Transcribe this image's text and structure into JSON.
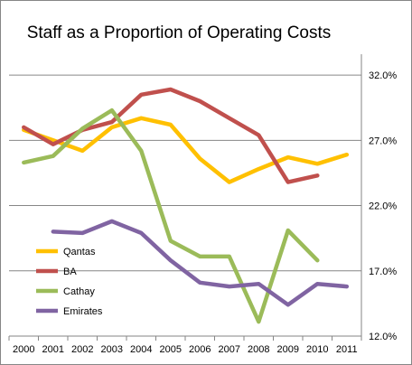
{
  "chart_data": {
    "type": "line",
    "title": "Staff as a Proportion of Operating Costs",
    "xlabel": "",
    "ylabel": "",
    "categories": [
      "2000",
      "2001",
      "2002",
      "2003",
      "2004",
      "2005",
      "2006",
      "2007",
      "2008",
      "2009",
      "2010",
      "2011"
    ],
    "ylim": [
      12,
      33.6
    ],
    "y_ticks": [
      12,
      17,
      22,
      27,
      32
    ],
    "y_tick_labels": [
      "12.0%",
      "17.0%",
      "22.0%",
      "27.0%",
      "32.0%"
    ],
    "y_axis_side": "right",
    "grid": true,
    "legend_position": "left",
    "series": [
      {
        "name": "Qantas",
        "color": "#FFC000",
        "values": [
          27.8,
          27.0,
          26.2,
          28.0,
          28.7,
          28.2,
          25.6,
          23.8,
          24.8,
          25.7,
          25.2,
          25.9
        ]
      },
      {
        "name": "BA",
        "color": "#C0504D",
        "values": [
          28.0,
          26.7,
          27.8,
          28.4,
          30.5,
          30.9,
          30.0,
          28.7,
          27.4,
          23.8,
          24.3,
          null
        ]
      },
      {
        "name": "Cathay",
        "color": "#9BBB59",
        "values": [
          25.3,
          25.8,
          27.9,
          29.3,
          26.2,
          19.3,
          18.1,
          18.1,
          13.1,
          20.1,
          17.8,
          null
        ]
      },
      {
        "name": "Emirates",
        "color": "#8064A2",
        "values": [
          null,
          20.0,
          19.9,
          20.8,
          19.9,
          17.8,
          16.1,
          15.8,
          16.0,
          14.4,
          16.0,
          15.8
        ]
      }
    ]
  }
}
